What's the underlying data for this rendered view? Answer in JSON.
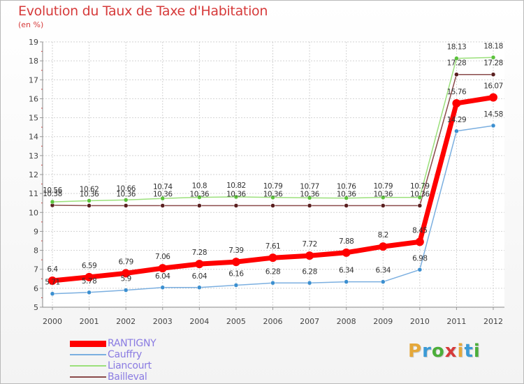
{
  "title": "Evolution du Taux de Taxe d'Habitation",
  "subtitle": "(en %)",
  "logo": {
    "letters": [
      "P",
      "r",
      "o",
      "x",
      "i",
      "t",
      "i"
    ],
    "colors": [
      "#e5a83a",
      "#3a9ad6",
      "#4cae3a",
      "#d63a3a",
      "#e5a83a",
      "#3a9ad6",
      "#4cae3a"
    ]
  },
  "chart_data": {
    "type": "line",
    "title": "Evolution du Taux de Taxe d'Habitation",
    "subtitle": "(en %)",
    "x": [
      "2000",
      "2001",
      "2002",
      "2003",
      "2004",
      "2005",
      "2006",
      "2007",
      "2008",
      "2009",
      "2010",
      "2011",
      "2012"
    ],
    "ylim": [
      5,
      19
    ],
    "yticks": [
      5,
      6,
      7,
      8,
      9,
      10,
      11,
      12,
      13,
      14,
      15,
      16,
      17,
      18,
      19
    ],
    "grid": true,
    "legend_position": "bottom-left",
    "series": [
      {
        "name": "RANTIGNY",
        "color": "#ff0000",
        "marker": "#ff0000",
        "width": 7,
        "marker_size": 6,
        "values": [
          6.4,
          6.59,
          6.79,
          7.06,
          7.28,
          7.39,
          7.61,
          7.72,
          7.88,
          8.2,
          8.45,
          15.76,
          16.07
        ],
        "labels": [
          "6.4",
          "6.59",
          "6.79",
          "7.06",
          "7.28",
          "7.39",
          "7.61",
          "7.72",
          "7.88",
          "8.2",
          "8.45",
          "15.76",
          "16.07"
        ]
      },
      {
        "name": "Cauffry",
        "color": "#7bafe0",
        "marker": "#3b8fd0",
        "width": 1.5,
        "marker_size": 3,
        "values": [
          5.71,
          5.78,
          5.9,
          6.04,
          6.04,
          6.16,
          6.28,
          6.28,
          6.34,
          6.34,
          6.98,
          14.29,
          14.58
        ],
        "labels": [
          "5.71",
          "5.78",
          "5.9",
          "6.04",
          "6.04",
          "6.16",
          "6.28",
          "6.28",
          "6.34",
          "6.34",
          "6.98",
          "14.29",
          "14.58"
        ]
      },
      {
        "name": "Liancourt",
        "color": "#9be07b",
        "marker": "#5cc23c",
        "width": 1.5,
        "marker_size": 3,
        "values": [
          10.56,
          10.62,
          10.66,
          10.74,
          10.8,
          10.82,
          10.79,
          10.77,
          10.76,
          10.79,
          10.79,
          18.13,
          18.18
        ],
        "labels": [
          "10.56",
          "10.62",
          "10.66",
          "10.74",
          "10.8",
          "10.82",
          "10.79",
          "10.77",
          "10.76",
          "10.79",
          "10.79",
          "18.13",
          "18.18"
        ]
      },
      {
        "name": "Bailleval",
        "color": "#8a4a4a",
        "marker": "#5a2020",
        "width": 1.5,
        "marker_size": 3,
        "values": [
          10.38,
          10.36,
          10.36,
          10.36,
          10.36,
          10.36,
          10.36,
          10.36,
          10.36,
          10.36,
          10.36,
          17.28,
          17.28
        ],
        "labels": [
          "10.38",
          "10.36",
          "10.36",
          "10.36",
          "10.36",
          "10.36",
          "10.36",
          "10.36",
          "10.36",
          "10.36",
          "10.36",
          "17.28",
          "17.28"
        ]
      }
    ]
  }
}
